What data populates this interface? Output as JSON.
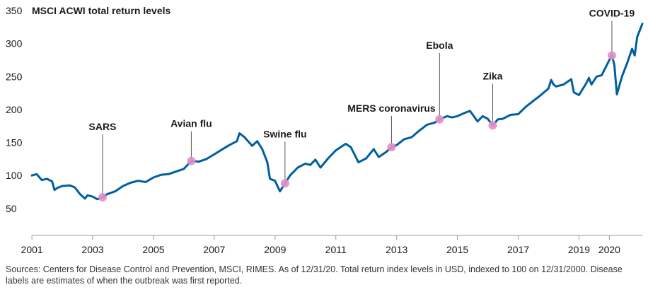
{
  "chart_data": {
    "type": "line",
    "title": "",
    "ylabel": "MSCI ACWI total return levels",
    "xlabel": "",
    "ylim": [
      0,
      350
    ],
    "xlim": [
      "2000-12-31",
      "2021-01-31"
    ],
    "y_ticks": [
      "350",
      "300",
      "250",
      "200",
      "150",
      "100",
      "50"
    ],
    "x_ticks": [
      {
        "label": "2001",
        "date": "2001-01-01"
      },
      {
        "label": "2003",
        "date": "2003-01-01"
      },
      {
        "label": "2005",
        "date": "2005-01-01"
      },
      {
        "label": "2007",
        "date": "2007-01-01"
      },
      {
        "label": "2009",
        "date": "2009-01-01"
      },
      {
        "label": "2011",
        "date": "2011-01-01"
      },
      {
        "label": "2013",
        "date": "2013-01-01"
      },
      {
        "label": "2015",
        "date": "2015-01-01"
      },
      {
        "label": "2017",
        "date": "2017-01-01"
      },
      {
        "label": "2019",
        "date": "2019-01-01"
      },
      {
        "label": "2020",
        "date": "2020-01-01"
      }
    ],
    "grid": false,
    "series": [
      {
        "color": "#005f9e",
        "points": [
          [
            "2000-12-31",
            100
          ],
          [
            "2001-02-28",
            102
          ],
          [
            "2001-04-30",
            93
          ],
          [
            "2001-06-30",
            95
          ],
          [
            "2001-08-31",
            91
          ],
          [
            "2001-09-30",
            78
          ],
          [
            "2001-10-31",
            81
          ],
          [
            "2001-12-31",
            84
          ],
          [
            "2002-03-31",
            85
          ],
          [
            "2002-05-31",
            82
          ],
          [
            "2002-07-31",
            72
          ],
          [
            "2002-09-30",
            65
          ],
          [
            "2002-10-31",
            70
          ],
          [
            "2002-12-31",
            68
          ],
          [
            "2003-02-28",
            64
          ],
          [
            "2003-04-30",
            67
          ],
          [
            "2003-06-30",
            72
          ],
          [
            "2003-09-30",
            76
          ],
          [
            "2003-12-31",
            84
          ],
          [
            "2004-03-31",
            89
          ],
          [
            "2004-06-30",
            92
          ],
          [
            "2004-09-30",
            90
          ],
          [
            "2004-12-31",
            97
          ],
          [
            "2005-03-31",
            101
          ],
          [
            "2005-06-30",
            102
          ],
          [
            "2005-09-30",
            106
          ],
          [
            "2005-12-31",
            110
          ],
          [
            "2006-03-31",
            122
          ],
          [
            "2006-06-30",
            121
          ],
          [
            "2006-09-30",
            125
          ],
          [
            "2006-12-31",
            132
          ],
          [
            "2007-03-31",
            139
          ],
          [
            "2007-06-30",
            146
          ],
          [
            "2007-09-30",
            152
          ],
          [
            "2007-10-31",
            164
          ],
          [
            "2007-12-31",
            158
          ],
          [
            "2008-03-31",
            145
          ],
          [
            "2008-05-31",
            152
          ],
          [
            "2008-07-31",
            140
          ],
          [
            "2008-09-30",
            120
          ],
          [
            "2008-10-31",
            95
          ],
          [
            "2008-12-31",
            92
          ],
          [
            "2009-02-28",
            76
          ],
          [
            "2009-04-30",
            88
          ],
          [
            "2009-06-30",
            100
          ],
          [
            "2009-09-30",
            112
          ],
          [
            "2009-12-31",
            118
          ],
          [
            "2010-02-28",
            116
          ],
          [
            "2010-04-30",
            124
          ],
          [
            "2010-06-30",
            112
          ],
          [
            "2010-09-30",
            126
          ],
          [
            "2010-12-31",
            138
          ],
          [
            "2011-02-28",
            143
          ],
          [
            "2011-04-30",
            148
          ],
          [
            "2011-06-30",
            143
          ],
          [
            "2011-09-30",
            120
          ],
          [
            "2011-12-31",
            126
          ],
          [
            "2012-03-31",
            140
          ],
          [
            "2012-05-31",
            128
          ],
          [
            "2012-08-31",
            136
          ],
          [
            "2012-10-31",
            143
          ],
          [
            "2012-12-31",
            146
          ],
          [
            "2013-03-31",
            155
          ],
          [
            "2013-06-30",
            158
          ],
          [
            "2013-09-30",
            168
          ],
          [
            "2013-12-31",
            177
          ],
          [
            "2014-03-31",
            180
          ],
          [
            "2014-05-31",
            185
          ],
          [
            "2014-08-31",
            190
          ],
          [
            "2014-10-31",
            188
          ],
          [
            "2014-12-31",
            190
          ],
          [
            "2015-03-31",
            195
          ],
          [
            "2015-05-31",
            198
          ],
          [
            "2015-08-31",
            182
          ],
          [
            "2015-10-31",
            190
          ],
          [
            "2015-12-31",
            186
          ],
          [
            "2016-02-29",
            176
          ],
          [
            "2016-04-30",
            185
          ],
          [
            "2016-06-30",
            186
          ],
          [
            "2016-09-30",
            192
          ],
          [
            "2016-12-31",
            193
          ],
          [
            "2017-03-31",
            204
          ],
          [
            "2017-06-30",
            213
          ],
          [
            "2017-09-30",
            222
          ],
          [
            "2017-12-31",
            232
          ],
          [
            "2018-01-31",
            245
          ],
          [
            "2018-02-28",
            238
          ],
          [
            "2018-03-31",
            235
          ],
          [
            "2018-06-30",
            238
          ],
          [
            "2018-09-30",
            246
          ],
          [
            "2018-10-31",
            226
          ],
          [
            "2018-12-31",
            222
          ],
          [
            "2019-03-31",
            240
          ],
          [
            "2019-04-30",
            248
          ],
          [
            "2019-05-31",
            238
          ],
          [
            "2019-07-31",
            250
          ],
          [
            "2019-09-30",
            252
          ],
          [
            "2019-12-31",
            275
          ],
          [
            "2020-01-31",
            282
          ],
          [
            "2020-02-29",
            268
          ],
          [
            "2020-03-31",
            223
          ],
          [
            "2020-05-31",
            250
          ],
          [
            "2020-07-31",
            270
          ],
          [
            "2020-09-30",
            292
          ],
          [
            "2020-10-31",
            282
          ],
          [
            "2020-11-30",
            310
          ],
          [
            "2021-01-31",
            330
          ]
        ]
      }
    ],
    "annotations": [
      {
        "label": "SARS",
        "date": "2003-04-30",
        "value": 67
      },
      {
        "label": "Avian flu",
        "date": "2006-03-31",
        "value": 122
      },
      {
        "label": "Swine flu",
        "date": "2009-04-30",
        "value": 88
      },
      {
        "label": "MERS coronavirus",
        "date": "2012-10-31",
        "value": 143
      },
      {
        "label": "Ebola",
        "date": "2014-05-31",
        "value": 185
      },
      {
        "label": "Zika",
        "date": "2016-02-29",
        "value": 176
      },
      {
        "label": "COVID-19",
        "date": "2020-01-31",
        "value": 282
      }
    ],
    "line_color": "#005f9e",
    "marker_color": "#e38ec8"
  },
  "footnote": "Sources: Centers for Disease Control and Prevention, MSCI, RIMES. As of 12/31/20. Total return index levels in USD, indexed to 100 on 12/31/2000. Disease labels are estimates of when the outbreak was first reported."
}
